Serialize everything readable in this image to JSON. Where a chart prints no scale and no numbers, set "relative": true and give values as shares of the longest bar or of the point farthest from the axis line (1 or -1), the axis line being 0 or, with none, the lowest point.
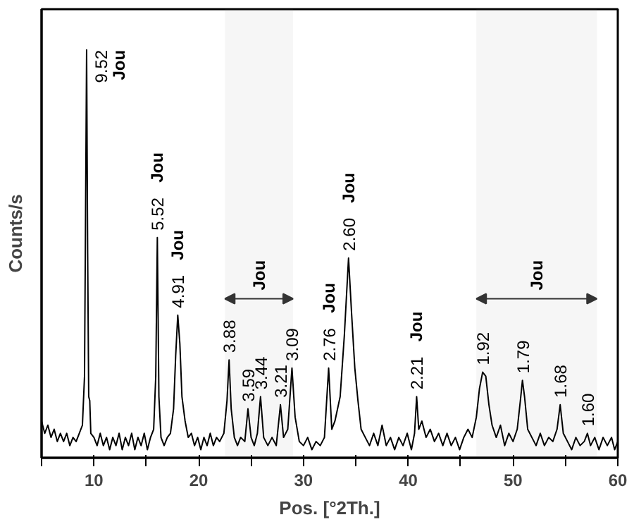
{
  "chart_data": {
    "type": "line",
    "relative": true,
    "xlabel": "Pos. [°2Th.]",
    "ylabel": "Counts/s",
    "xlim": [
      5,
      60
    ],
    "xticks": [
      {
        "value": 5,
        "label": null
      },
      10,
      {
        "value": 15,
        "label": null
      },
      20,
      {
        "value": 25,
        "label": null
      },
      30,
      {
        "value": 35,
        "label": null
      },
      40,
      {
        "value": 45,
        "label": null
      },
      50,
      {
        "value": 55,
        "label": null
      },
      60
    ],
    "grid": false,
    "tick_labels": "x",
    "marker": "none",
    "line_style": "solid",
    "series": [
      {
        "color": "#000000",
        "x": [
          5.0,
          5.3,
          5.6,
          5.9,
          6.2,
          6.5,
          6.8,
          7.1,
          7.4,
          7.7,
          8.0,
          8.3,
          8.6,
          8.9,
          9.1,
          9.2,
          9.3,
          9.4,
          9.5,
          9.6,
          9.7,
          10.0,
          10.3,
          10.6,
          10.9,
          11.2,
          11.5,
          11.8,
          12.1,
          12.4,
          12.7,
          13.0,
          13.3,
          13.6,
          13.9,
          14.2,
          14.5,
          14.8,
          15.1,
          15.4,
          15.7,
          15.9,
          16.05,
          16.2,
          16.4,
          16.7,
          17.0,
          17.3,
          17.6,
          17.8,
          18.0,
          18.2,
          18.4,
          18.7,
          19.0,
          19.3,
          19.6,
          19.9,
          20.2,
          20.5,
          20.8,
          21.1,
          21.4,
          21.7,
          22.0,
          22.4,
          22.7,
          22.9,
          23.1,
          23.4,
          23.7,
          24.0,
          24.4,
          24.7,
          25.0,
          25.3,
          25.6,
          25.9,
          26.2,
          26.6,
          27.0,
          27.4,
          27.8,
          28.1,
          28.5,
          28.9,
          29.2,
          29.6,
          30.0,
          30.4,
          30.8,
          31.2,
          31.6,
          32.0,
          32.4,
          32.7,
          33.0,
          33.5,
          33.9,
          34.3,
          34.6,
          34.9,
          35.2,
          35.5,
          35.9,
          36.3,
          36.7,
          37.1,
          37.5,
          37.9,
          38.3,
          38.7,
          39.1,
          39.5,
          39.9,
          40.3,
          40.6,
          40.8,
          41.0,
          41.3,
          41.7,
          42.1,
          42.5,
          42.9,
          43.3,
          43.7,
          44.1,
          44.5,
          44.9,
          45.3,
          45.7,
          46.1,
          46.5,
          46.8,
          47.1,
          47.4,
          47.7,
          48.0,
          48.4,
          48.8,
          49.2,
          49.6,
          50.0,
          50.4,
          50.7,
          50.9,
          51.1,
          51.4,
          51.8,
          52.2,
          52.6,
          53.0,
          53.4,
          53.8,
          54.2,
          54.5,
          54.8,
          55.2,
          55.6,
          56.0,
          56.4,
          56.8,
          57.1,
          57.4,
          57.8,
          58.2,
          58.6,
          59.0,
          59.4,
          59.7,
          60.0
        ],
        "values": [
          0.09,
          0.06,
          0.08,
          0.05,
          0.07,
          0.04,
          0.06,
          0.04,
          0.06,
          0.03,
          0.05,
          0.04,
          0.06,
          0.08,
          0.2,
          0.6,
          1.0,
          0.5,
          0.15,
          0.14,
          0.06,
          0.05,
          0.03,
          0.06,
          0.03,
          0.05,
          0.02,
          0.05,
          0.03,
          0.06,
          0.02,
          0.05,
          0.03,
          0.06,
          0.02,
          0.05,
          0.03,
          0.06,
          0.02,
          0.05,
          0.07,
          0.2,
          0.54,
          0.15,
          0.05,
          0.03,
          0.05,
          0.06,
          0.12,
          0.25,
          0.35,
          0.28,
          0.15,
          0.09,
          0.05,
          0.06,
          0.03,
          0.05,
          0.02,
          0.05,
          0.03,
          0.06,
          0.03,
          0.05,
          0.04,
          0.06,
          0.14,
          0.24,
          0.12,
          0.05,
          0.03,
          0.05,
          0.04,
          0.12,
          0.05,
          0.03,
          0.06,
          0.15,
          0.05,
          0.03,
          0.05,
          0.03,
          0.13,
          0.05,
          0.07,
          0.22,
          0.1,
          0.04,
          0.03,
          0.05,
          0.02,
          0.04,
          0.03,
          0.05,
          0.22,
          0.07,
          0.09,
          0.15,
          0.3,
          0.49,
          0.35,
          0.22,
          0.14,
          0.07,
          0.05,
          0.03,
          0.06,
          0.03,
          0.08,
          0.03,
          0.05,
          0.02,
          0.05,
          0.03,
          0.06,
          0.02,
          0.06,
          0.15,
          0.07,
          0.09,
          0.05,
          0.07,
          0.04,
          0.06,
          0.03,
          0.06,
          0.03,
          0.05,
          0.02,
          0.05,
          0.07,
          0.05,
          0.1,
          0.17,
          0.21,
          0.2,
          0.13,
          0.08,
          0.05,
          0.08,
          0.03,
          0.06,
          0.04,
          0.07,
          0.14,
          0.19,
          0.15,
          0.07,
          0.05,
          0.03,
          0.06,
          0.03,
          0.05,
          0.04,
          0.07,
          0.13,
          0.06,
          0.04,
          0.02,
          0.05,
          0.03,
          0.04,
          0.06,
          0.03,
          0.05,
          0.02,
          0.05,
          0.03,
          0.05,
          0.02,
          0.04
        ]
      }
    ],
    "bands": [
      {
        "axis": "x",
        "from": 22.5,
        "to": 29,
        "label": "Jou"
      },
      {
        "axis": "x",
        "from": 46.5,
        "to": 58,
        "label": "Jou"
      }
    ],
    "annotations": [
      {
        "text": "9.52",
        "x": 9.3,
        "y": 1.0
      },
      "Jou",
      {
        "text": "5.52",
        "x": 16.05,
        "y": 0.54
      },
      "Jou",
      {
        "text": "4.91",
        "x": 18.0,
        "y": 0.35
      },
      "Jou",
      {
        "text": "3.88",
        "x": 22.9,
        "y": 0.24
      },
      {
        "text": "3.59",
        "x": 24.7,
        "y": 0.12
      },
      {
        "text": "3.44",
        "x": 25.9,
        "y": 0.15
      },
      {
        "text": "3.21",
        "x": 27.8,
        "y": 0.13
      },
      {
        "text": "3.09",
        "x": 28.9,
        "y": 0.22
      },
      {
        "text": "2.76",
        "x": 32.4,
        "y": 0.22
      },
      "Jou",
      {
        "text": "2.60",
        "x": 34.3,
        "y": 0.49
      },
      "Jou",
      {
        "text": "2.21",
        "x": 40.8,
        "y": 0.15
      },
      "Jou",
      {
        "text": "1.92",
        "x": 47.1,
        "y": 0.21
      },
      {
        "text": "1.79",
        "x": 50.9,
        "y": 0.19
      },
      {
        "text": "1.68",
        "x": 54.5,
        "y": 0.13
      },
      {
        "text": "1.60",
        "x": 57.1,
        "y": 0.06
      }
    ]
  }
}
